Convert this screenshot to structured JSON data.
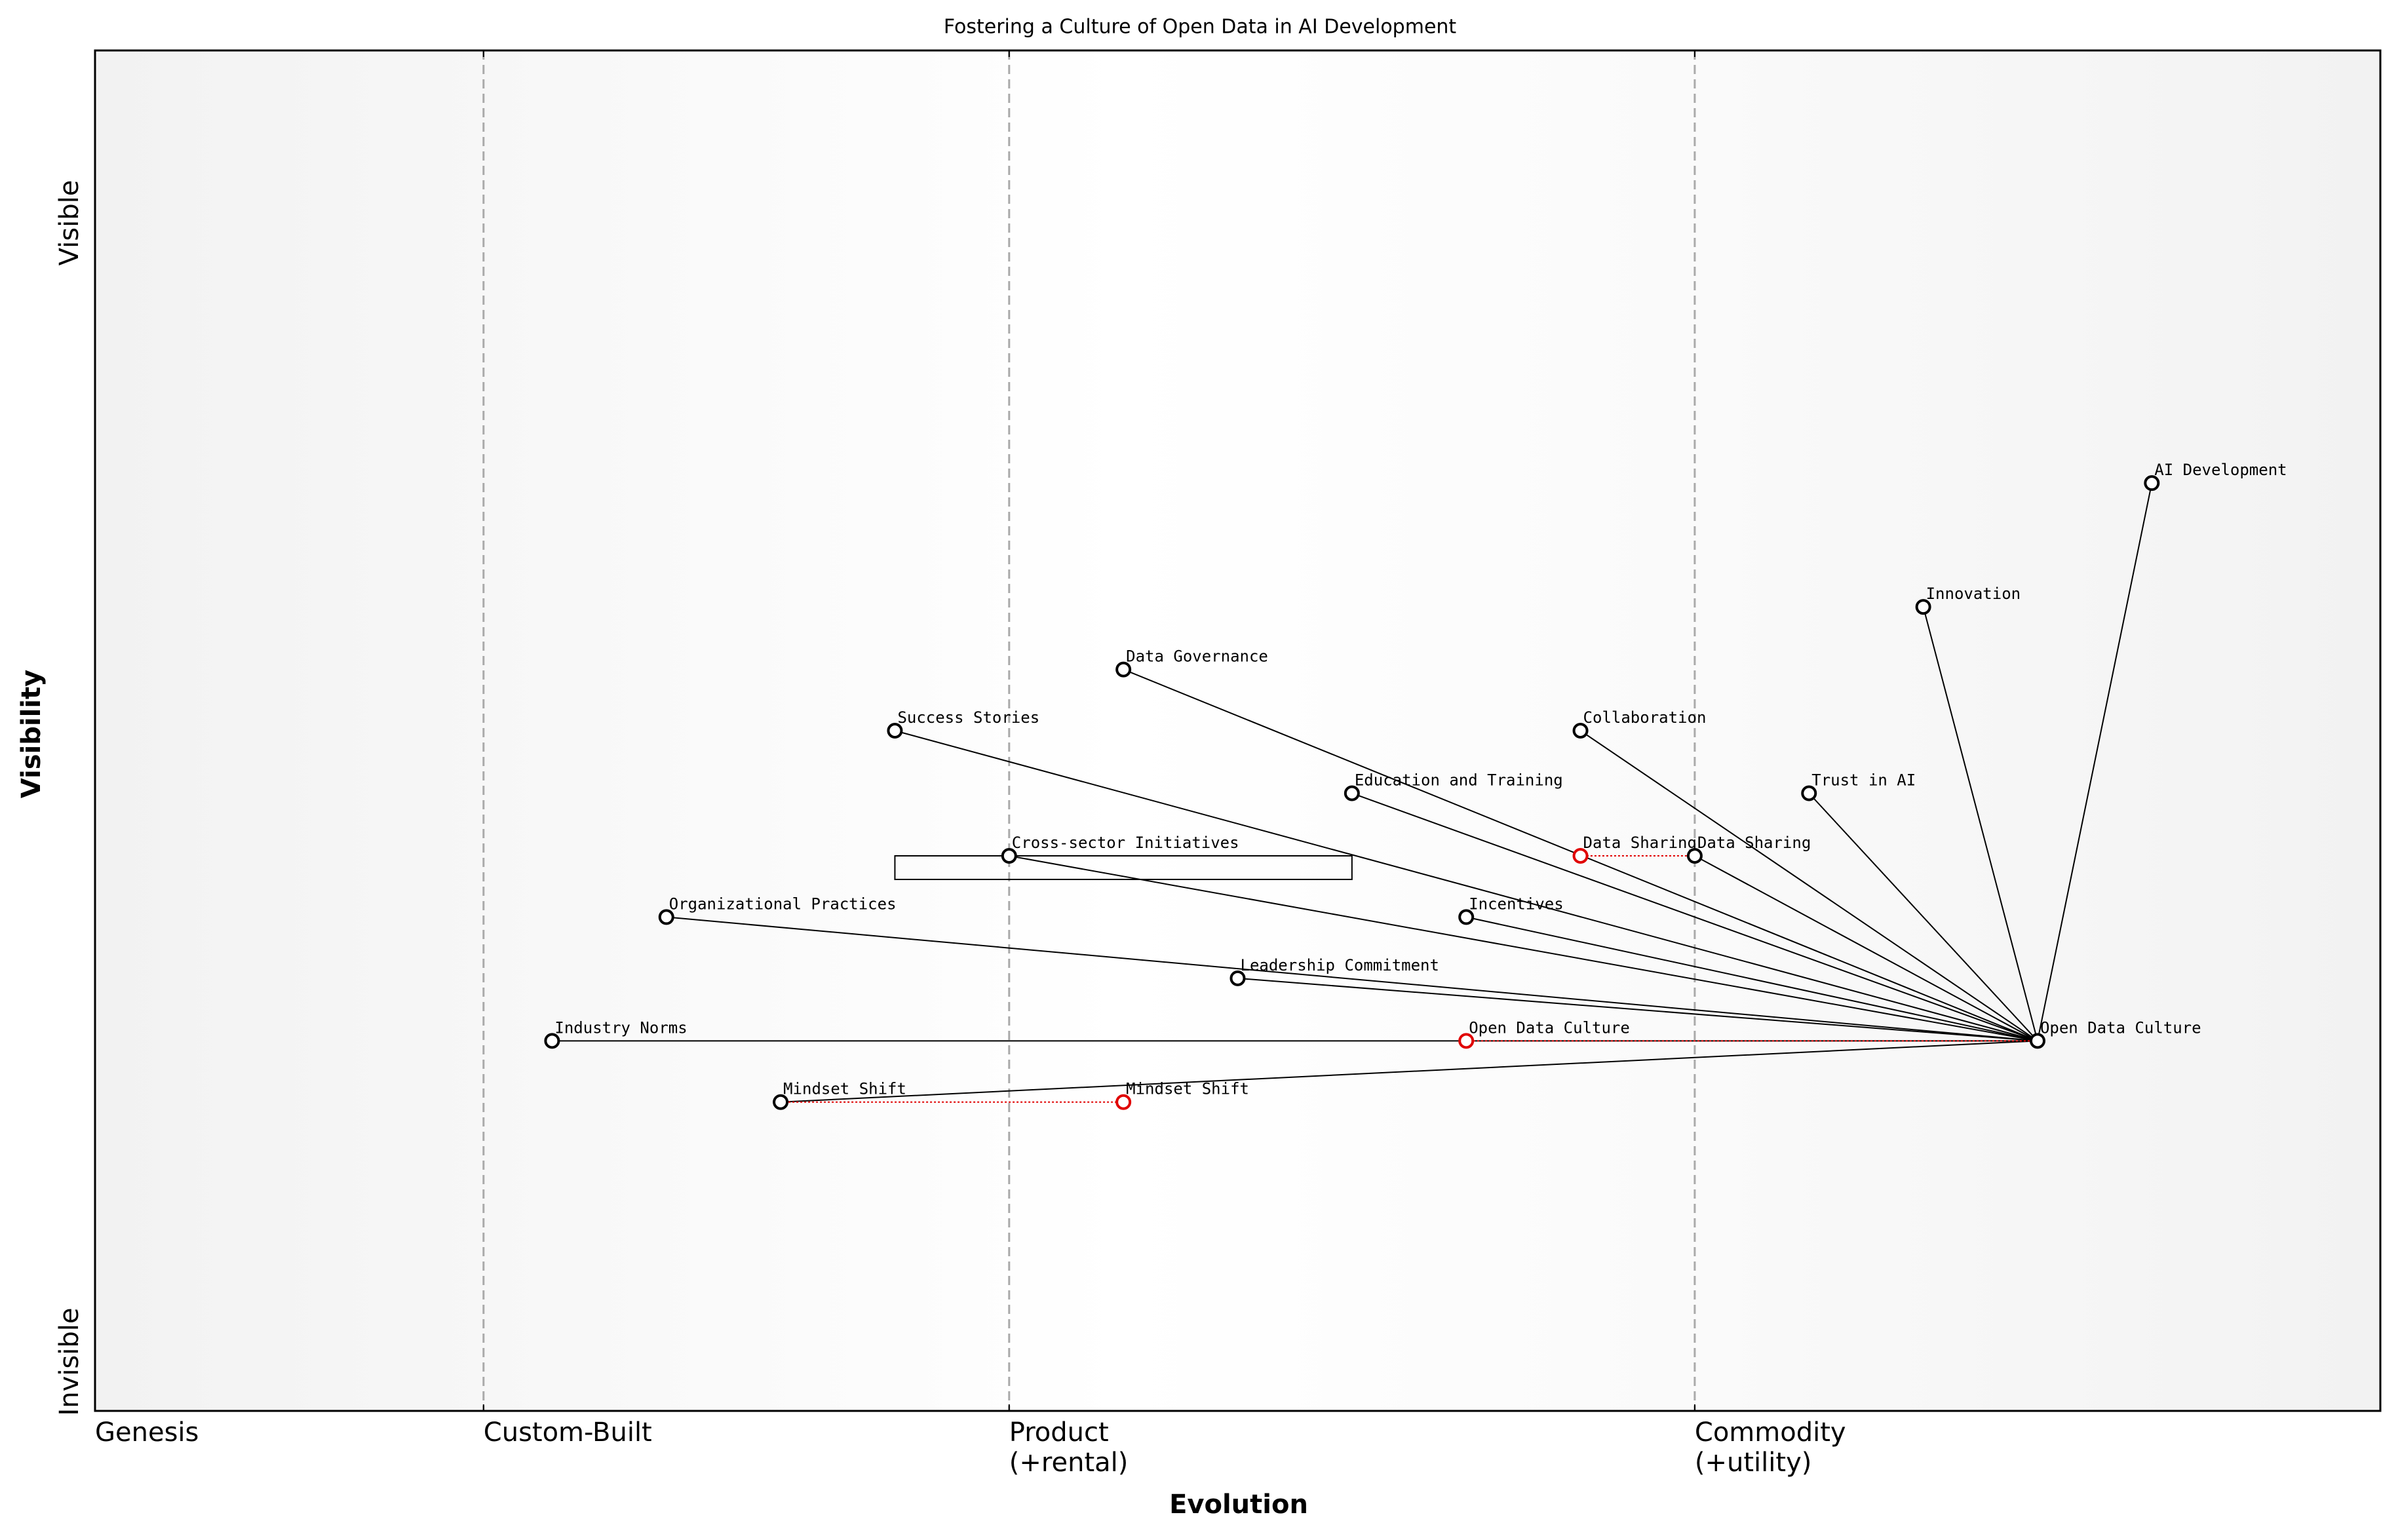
{
  "chart_data": {
    "type": "wardley",
    "title": "Fostering a Culture of Open Data in AI Development",
    "x_label": "Evolution",
    "y_label": "Visibility",
    "y_axis_labels": {
      "top": "Visible",
      "bottom": "Invisible"
    },
    "xlim": [
      0,
      1
    ],
    "ylim": [
      0,
      1
    ],
    "xticks": [
      {
        "value": 0,
        "label": "Genesis"
      },
      {
        "value": 0.17,
        "label": "Custom-Built"
      },
      {
        "value": 0.4,
        "label": "Product\n(+rental)"
      },
      {
        "value": 0.7,
        "label": "Commodity\n(+utility)"
      }
    ],
    "components": [
      {
        "name": "AI Development",
        "x": 0.9,
        "y": 0.682
      },
      {
        "name": "Innovation",
        "x": 0.8,
        "y": 0.591
      },
      {
        "name": "Data Governance",
        "x": 0.45,
        "y": 0.545
      },
      {
        "name": "Success Stories",
        "x": 0.35,
        "y": 0.5
      },
      {
        "name": "Collaboration",
        "x": 0.65,
        "y": 0.5
      },
      {
        "name": "Education and Training",
        "x": 0.55,
        "y": 0.454
      },
      {
        "name": "Trust in AI",
        "x": 0.75,
        "y": 0.454
      },
      {
        "name": "Data Sharing",
        "x": 0.7,
        "y": 0.408
      },
      {
        "name": "Cross-sector Initiatives",
        "x": 0.4,
        "y": 0.408
      },
      {
        "name": "Organizational Practices",
        "x": 0.25,
        "y": 0.363
      },
      {
        "name": "Incentives",
        "x": 0.6,
        "y": 0.363
      },
      {
        "name": "Leadership Commitment",
        "x": 0.5,
        "y": 0.318
      },
      {
        "name": "Industry Norms",
        "x": 0.2,
        "y": 0.272
      },
      {
        "name": "Open Data Culture",
        "x": 0.85,
        "y": 0.272
      },
      {
        "name": "Mindset Shift",
        "x": 0.3,
        "y": 0.227
      }
    ],
    "links": [
      [
        "Open Data Culture",
        "AI Development"
      ],
      [
        "Open Data Culture",
        "Innovation"
      ],
      [
        "Open Data Culture",
        "Data Governance"
      ],
      [
        "Open Data Culture",
        "Success Stories"
      ],
      [
        "Open Data Culture",
        "Collaboration"
      ],
      [
        "Open Data Culture",
        "Education and Training"
      ],
      [
        "Open Data Culture",
        "Trust in AI"
      ],
      [
        "Open Data Culture",
        "Data Sharing"
      ],
      [
        "Open Data Culture",
        "Cross-sector Initiatives"
      ],
      [
        "Open Data Culture",
        "Organizational Practices"
      ],
      [
        "Open Data Culture",
        "Incentives"
      ],
      [
        "Open Data Culture",
        "Leadership Commitment"
      ],
      [
        "Open Data Culture",
        "Industry Norms"
      ],
      [
        "Open Data Culture",
        "Mindset Shift"
      ]
    ],
    "evolutions": [
      {
        "name": "Data Sharing",
        "x": 0.65
      },
      {
        "name": "Open Data Culture",
        "x": 0.6
      },
      {
        "name": "Mindset Shift",
        "x": 0.45
      }
    ],
    "pipelines": [
      {
        "component": "Cross-sector Initiatives",
        "xlim": [
          0.35,
          0.55
        ]
      }
    ],
    "evolution_color": "#e00000"
  }
}
